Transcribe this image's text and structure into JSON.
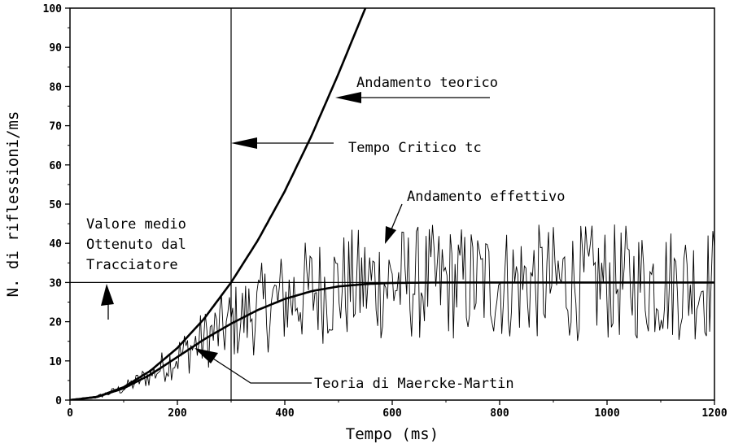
{
  "chart_data": {
    "type": "line",
    "title": "",
    "xlabel": "Tempo (ms)",
    "ylabel": "N. di riflessioni/ms",
    "xlim": [
      0,
      1200
    ],
    "ylim": [
      0,
      100
    ],
    "x_ticks": [
      0,
      200,
      400,
      600,
      800,
      1000,
      1200
    ],
    "y_ticks": [
      0,
      10,
      20,
      30,
      40,
      50,
      60,
      70,
      80,
      90,
      100
    ],
    "grid": false,
    "legend": "none",
    "series": [
      {
        "name": "Andamento teorico",
        "style": "thick-solid",
        "x": [
          0,
          50,
          100,
          150,
          200,
          250,
          300,
          350,
          400,
          450,
          500,
          550
        ],
        "y": [
          0,
          0.8,
          3.3,
          7.5,
          13.3,
          20.8,
          30.0,
          40.8,
          53.3,
          67.5,
          83.3,
          100.0
        ]
      },
      {
        "name": "Teoria di Maercke-Martin",
        "style": "thick-solid",
        "x": [
          0,
          50,
          100,
          150,
          200,
          250,
          300,
          350,
          400,
          450,
          500,
          550,
          600,
          700,
          800,
          1000,
          1200
        ],
        "y": [
          0,
          0.8,
          3.0,
          6.5,
          11.0,
          15.5,
          19.5,
          23.0,
          25.8,
          27.8,
          29.0,
          29.6,
          29.9,
          30.0,
          30.0,
          30.0,
          30.0
        ]
      },
      {
        "name": "Andamento effettivo",
        "style": "thin-noisy",
        "x": [
          0,
          50,
          100,
          150,
          200,
          250,
          300,
          350,
          400,
          450,
          500,
          550,
          600,
          700,
          800,
          1000,
          1200
        ],
        "y": [
          0,
          0.8,
          3.0,
          6.5,
          11.0,
          15.5,
          19.5,
          23.0,
          25.8,
          27.8,
          29.0,
          29.6,
          29.9,
          30.0,
          30.0,
          30.0,
          30.0
        ],
        "noise_range": [
          -15,
          15
        ]
      },
      {
        "name": "Valore medio Ottenuto dal Tracciatore",
        "style": "thin-solid",
        "x": [
          0,
          1200
        ],
        "y": [
          30,
          30
        ]
      }
    ],
    "vertical_line": {
      "label": "Tempo Critico tc",
      "x": 300
    },
    "annotations": [
      {
        "text": "Andamento teorico"
      },
      {
        "text": "Tempo Critico tc"
      },
      {
        "text": "Andamento effettivo"
      },
      {
        "lines": [
          "Valore medio",
          "Ottenuto dal",
          "Tracciatore"
        ]
      },
      {
        "text": "Teoria di Maercke-Martin"
      }
    ]
  }
}
